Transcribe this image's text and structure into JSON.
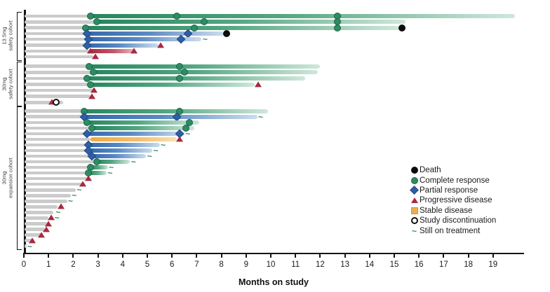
{
  "chart_data": {
    "type": "swimmer",
    "xlabel": "Months on study",
    "xticks": [
      "0",
      "1",
      "2",
      "3",
      "4",
      "5",
      "6",
      "7",
      "8",
      "9",
      "10",
      "11",
      "12",
      "13",
      "14",
      "15",
      "16",
      "17",
      "18",
      "19"
    ],
    "xlim": [
      0,
      20.2
    ],
    "colors": {
      "green": "#2e8b63",
      "blue": "#2d5fa6",
      "red": "#a82940",
      "orange": "#eeae4e",
      "gray": "#cbcbcb",
      "black": "#0d0d0d"
    },
    "legend": [
      {
        "marker": "death",
        "label": "Death"
      },
      {
        "marker": "complete",
        "label": "Complete response"
      },
      {
        "marker": "partial",
        "label": "Partial response"
      },
      {
        "marker": "progressive",
        "label": "Progressive disease"
      },
      {
        "marker": "stable",
        "label": "Stable disease"
      },
      {
        "marker": "discontinuation",
        "label": "Study discontinuation"
      },
      {
        "marker": "ongoing",
        "label": "Still on treatment"
      }
    ],
    "cohorts": [
      {
        "label": "13.5mg\nsafety cohort",
        "rows": [
          {
            "gray_to": 2.7,
            "bar": {
              "color": "green",
              "from": 2.7,
              "to": 19.9
            },
            "markers": [
              {
                "t": "complete",
                "at": 2.7
              },
              {
                "t": "complete",
                "at": 6.2
              },
              {
                "t": "complete",
                "at": 12.7
              }
            ]
          },
          {
            "gray_to": 2.95,
            "bar": {
              "color": "green",
              "from": 2.95,
              "to": 15.45
            },
            "markers": [
              {
                "t": "complete",
                "at": 2.95
              },
              {
                "t": "complete",
                "at": 7.3
              },
              {
                "t": "complete",
                "at": 12.7
              }
            ]
          },
          {
            "gray_to": 2.5,
            "bar": {
              "color": "green",
              "from": 2.5,
              "to": 15.2
            },
            "markers": [
              {
                "t": "complete",
                "at": 2.5
              },
              {
                "t": "complete",
                "at": 6.9
              },
              {
                "t": "complete",
                "at": 12.7
              },
              {
                "t": "death",
                "at": 15.3
              }
            ]
          },
          {
            "gray_to": 2.55,
            "bar": {
              "color": "blue",
              "from": 2.55,
              "to": 8.1
            },
            "markers": [
              {
                "t": "partial",
                "at": 2.55
              },
              {
                "t": "partial",
                "at": 6.65
              },
              {
                "t": "death",
                "at": 8.2
              }
            ]
          },
          {
            "gray_to": 2.6,
            "bar": {
              "color": "blue",
              "from": 2.6,
              "to": 7.2
            },
            "markers": [
              {
                "t": "partial",
                "at": 2.6
              },
              {
                "t": "partial",
                "at": 6.35
              },
              {
                "t": "ongoing",
                "at": 7.3
              }
            ]
          },
          {
            "gray_to": 2.55,
            "bar": {
              "color": "blue",
              "from": 2.55,
              "to": 5.45
            },
            "markers": [
              {
                "t": "partial",
                "at": 2.55
              },
              {
                "t": "progressive",
                "at": 5.55
              }
            ]
          },
          {
            "gray_to": 2.65,
            "bar": {
              "color": "red",
              "from": 2.65,
              "to": 4.45
            },
            "markers": [
              {
                "t": "progressive",
                "at": 2.7
              },
              {
                "t": "progressive",
                "at": 4.45
              }
            ]
          },
          {
            "gray_to": 2.8,
            "bar": null,
            "markers": [
              {
                "t": "progressive",
                "at": 2.9
              }
            ]
          }
        ]
      },
      {
        "label": "30mg\nsafety cohort",
        "rows": [
          {
            "gray_to": 2.65,
            "bar": {
              "color": "green",
              "from": 2.65,
              "to": 12.0
            },
            "markers": [
              {
                "t": "complete",
                "at": 2.65
              },
              {
                "t": "complete",
                "at": 6.3
              }
            ]
          },
          {
            "gray_to": 2.8,
            "bar": {
              "color": "green",
              "from": 2.8,
              "to": 11.9
            },
            "markers": [
              {
                "t": "complete",
                "at": 2.8
              },
              {
                "t": "complete",
                "at": 6.5
              }
            ]
          },
          {
            "gray_to": 2.55,
            "bar": {
              "color": "green",
              "from": 2.55,
              "to": 11.4
            },
            "markers": [
              {
                "t": "complete",
                "at": 2.55
              },
              {
                "t": "complete",
                "at": 6.3
              }
            ]
          },
          {
            "gray_to": 2.7,
            "bar": {
              "color": "green",
              "from": 2.7,
              "to": 9.35
            },
            "markers": [
              {
                "t": "complete",
                "at": 2.7
              },
              {
                "t": "progressive",
                "at": 9.5
              }
            ]
          },
          {
            "gray_to": 2.8,
            "bar": null,
            "markers": [
              {
                "t": "progressive",
                "at": 2.85
              }
            ]
          },
          {
            "gray_to": 2.7,
            "bar": null,
            "markers": [
              {
                "t": "progressive",
                "at": 2.75
              }
            ]
          },
          {
            "gray_to": 1.6,
            "bar": null,
            "markers": [
              {
                "t": "progressive",
                "at": 1.15
              },
              {
                "t": "discontinuation",
                "at": 1.3
              }
            ]
          }
        ]
      },
      {
        "label": "30mg\nexpansion cohort",
        "rows": [
          {
            "gray_to": 2.45,
            "bar": {
              "color": "green",
              "from": 2.45,
              "to": 9.9
            },
            "markers": [
              {
                "t": "complete",
                "at": 2.45
              },
              {
                "t": "complete",
                "at": 6.3
              }
            ]
          },
          {
            "gray_to": 2.45,
            "bar": {
              "color": "blue",
              "from": 2.45,
              "to": 9.45
            },
            "markers": [
              {
                "t": "partial",
                "at": 2.45
              },
              {
                "t": "partial",
                "at": 6.2
              },
              {
                "t": "ongoing",
                "at": 9.55
              }
            ]
          },
          {
            "gray_to": 2.55,
            "bar": {
              "color": "green",
              "from": 2.55,
              "to": 7.1
            },
            "markers": [
              {
                "t": "complete",
                "at": 2.55
              },
              {
                "t": "complete",
                "at": 6.7
              }
            ]
          },
          {
            "gray_to": 2.75,
            "bar": {
              "color": "green",
              "from": 2.75,
              "to": 6.9
            },
            "markers": [
              {
                "t": "complete",
                "at": 2.75
              },
              {
                "t": "complete",
                "at": 6.55
              }
            ]
          },
          {
            "gray_to": 2.55,
            "bar": {
              "color": "blue",
              "from": 2.55,
              "to": 6.5
            },
            "markers": [
              {
                "t": "partial",
                "at": 2.55
              },
              {
                "t": "partial",
                "at": 6.3
              },
              {
                "t": "ongoing",
                "at": 6.6
              }
            ]
          },
          {
            "gray_to": 2.7,
            "bar": {
              "color": "orange",
              "from": 2.7,
              "to": 6.2
            },
            "markers": [
              {
                "t": "progressive",
                "at": 6.3
              }
            ]
          },
          {
            "gray_to": 2.6,
            "bar": {
              "color": "blue",
              "from": 2.6,
              "to": 5.5
            },
            "markers": [
              {
                "t": "partial",
                "at": 2.6
              },
              {
                "t": "ongoing",
                "at": 5.6
              }
            ]
          },
          {
            "gray_to": 2.6,
            "bar": {
              "color": "blue",
              "from": 2.6,
              "to": 5.2
            },
            "markers": [
              {
                "t": "partial",
                "at": 2.6
              },
              {
                "t": "ongoing",
                "at": 5.3
              }
            ]
          },
          {
            "gray_to": 2.75,
            "bar": {
              "color": "blue",
              "from": 2.75,
              "to": 4.95
            },
            "markers": [
              {
                "t": "partial",
                "at": 2.75
              },
              {
                "t": "ongoing",
                "at": 5.05
              }
            ]
          },
          {
            "gray_to": 2.95,
            "bar": {
              "color": "green",
              "from": 2.95,
              "to": 4.3
            },
            "markers": [
              {
                "t": "complete",
                "at": 2.95
              },
              {
                "t": "ongoing",
                "at": 4.4
              }
            ]
          },
          {
            "gray_to": 2.7,
            "bar": {
              "color": "green",
              "from": 2.7,
              "to": 3.4
            },
            "markers": [
              {
                "t": "complete",
                "at": 2.7
              },
              {
                "t": "ongoing",
                "at": 3.5
              }
            ]
          },
          {
            "gray_to": 2.6,
            "bar": {
              "color": "green",
              "from": 2.6,
              "to": 3.35
            },
            "markers": [
              {
                "t": "complete",
                "at": 2.6
              },
              {
                "t": "ongoing",
                "at": 3.45
              }
            ]
          },
          {
            "gray_to": 2.55,
            "bar": null,
            "markers": [
              {
                "t": "progressive",
                "at": 2.6
              }
            ]
          },
          {
            "gray_to": 2.35,
            "bar": null,
            "markers": [
              {
                "t": "progressive",
                "at": 2.4
              }
            ]
          },
          {
            "gray_to": 2.1,
            "bar": null,
            "markers": [
              {
                "t": "ongoing",
                "at": 2.2
              }
            ]
          },
          {
            "gray_to": 1.9,
            "bar": null,
            "markers": [
              {
                "t": "ongoing",
                "at": 2.0
              }
            ]
          },
          {
            "gray_to": 1.75,
            "bar": null,
            "markers": [
              {
                "t": "ongoing",
                "at": 1.85
              }
            ]
          },
          {
            "gray_to": 1.35,
            "bar": null,
            "markers": [
              {
                "t": "progressive",
                "at": 1.5
              }
            ]
          },
          {
            "gray_to": 1.2,
            "bar": null,
            "markers": [
              {
                "t": "ongoing",
                "at": 1.35
              }
            ]
          },
          {
            "gray_to": 1.0,
            "bar": null,
            "markers": [
              {
                "t": "progressive",
                "at": 1.1
              },
              {
                "t": "ongoing",
                "at": 1.3
              }
            ]
          },
          {
            "gray_to": 0.95,
            "bar": null,
            "markers": [
              {
                "t": "progressive",
                "at": 1.0
              }
            ]
          },
          {
            "gray_to": 0.85,
            "bar": null,
            "markers": [
              {
                "t": "progressive",
                "at": 0.9
              }
            ]
          },
          {
            "gray_to": 0.7,
            "bar": null,
            "markers": [
              {
                "t": "progressive",
                "at": 0.72
              }
            ]
          },
          {
            "gray_to": 0.42,
            "bar": null,
            "markers": [
              {
                "t": "progressive",
                "at": 0.35
              }
            ]
          },
          {
            "gray_to": 0.12,
            "bar": null,
            "markers": [
              {
                "t": "ongoing",
                "at": 0.2
              }
            ]
          }
        ]
      }
    ]
  }
}
